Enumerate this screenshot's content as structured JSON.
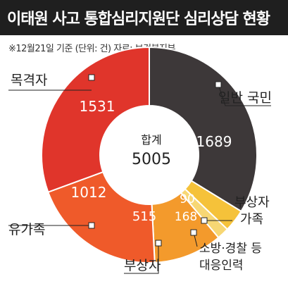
{
  "title": "이태원 사고 통합심리지원단 심리상담 현황",
  "subtitle": "※12월21일 기준 (단위: 건) 자료: 보건복지부",
  "chart_data": {
    "type": "pie",
    "center_label": "합계",
    "total": "5005",
    "slices": [
      {
        "name": "일반 국민",
        "value": 1689,
        "value_label": "1689",
        "color": "#3d3839"
      },
      {
        "name_lines": [
          "소방·경찰 등",
          "대응인력"
        ],
        "value": 168,
        "value_label": "168",
        "color": "#f5c23a"
      },
      {
        "name_lines": [
          "부상자",
          "가족"
        ],
        "value": 90,
        "value_label": "90",
        "color": "#f7d774"
      },
      {
        "name": "부상자",
        "value": 515,
        "value_label": "515",
        "color": "#f39a2c"
      },
      {
        "name": "유가족",
        "value": 1012,
        "value_label": "1012",
        "color": "#ef5a2a"
      },
      {
        "name": "목격자",
        "value": 1531,
        "value_label": "1531",
        "color": "#e0352b"
      }
    ]
  }
}
